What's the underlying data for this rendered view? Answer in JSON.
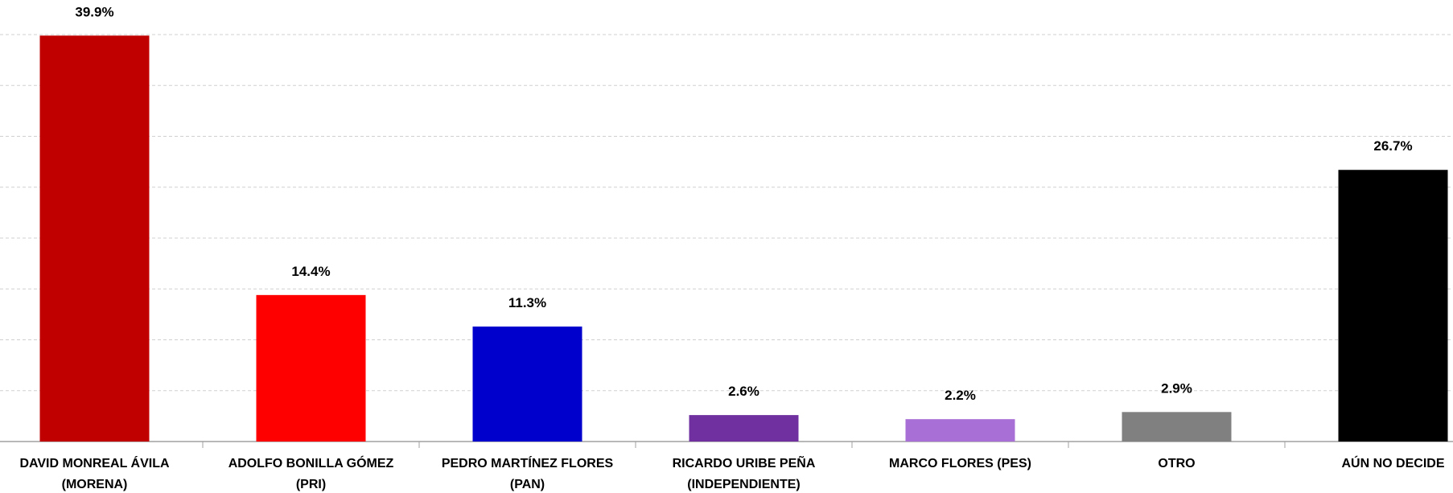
{
  "chart_data": {
    "type": "bar",
    "categories": [
      "DAVID MONREAL ÁVILA\n(MORENA)",
      "ADOLFO BONILLA GÓMEZ\n(PRI)",
      "PEDRO MARTÍNEZ FLORES\n(PAN)",
      "RICARDO URIBE PEÑA\n(INDEPENDIENTE)",
      "MARCO FLORES (PES)",
      "OTRO",
      "AÚN NO DECIDE"
    ],
    "values": [
      39.9,
      14.4,
      11.3,
      2.6,
      2.2,
      2.9,
      26.7
    ],
    "value_labels": [
      "39.9%",
      "14.4%",
      "11.3%",
      "2.6%",
      "2.2%",
      "2.9%",
      "26.7%"
    ],
    "colors": [
      "#c00000",
      "#ff0000",
      "#0000cc",
      "#7030a0",
      "#a86fd6",
      "#808080",
      "#000000"
    ],
    "ylim": [
      0,
      40
    ],
    "yticks": [
      0,
      5,
      10,
      15,
      20,
      25,
      30,
      35,
      40
    ],
    "grid": true
  }
}
